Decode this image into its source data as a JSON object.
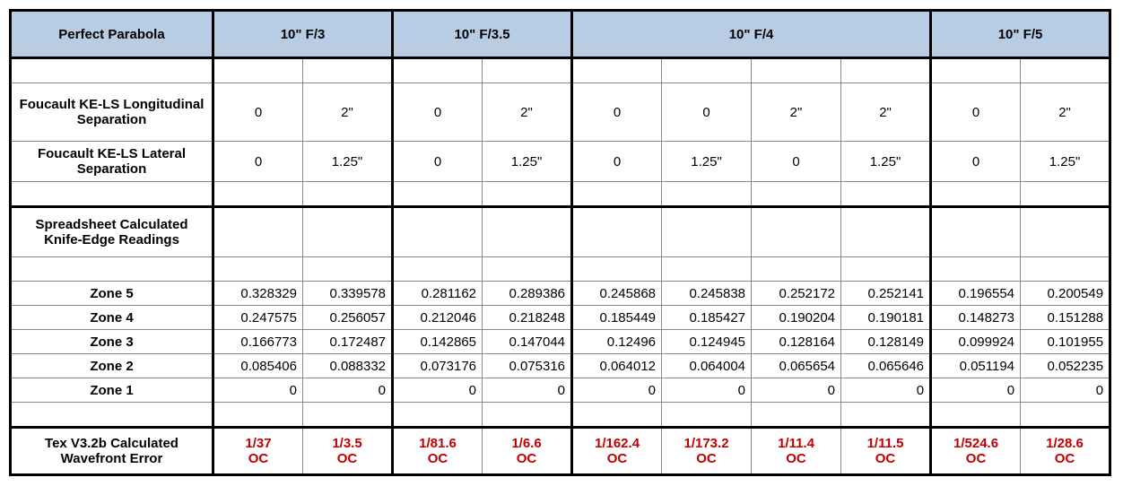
{
  "header": {
    "rowLabel": "Perfect Parabola",
    "groups": [
      "10\" F/3",
      "10\" F/3.5",
      "10\" F/4",
      "10\" F/5"
    ],
    "groupSpans": [
      2,
      2,
      4,
      2
    ],
    "bg": "#b8cce4"
  },
  "foucault": {
    "longitudinal": {
      "label": "Foucault KE-LS Longitudinal Separation",
      "values": [
        "0",
        "2\"",
        "0",
        "2\"",
        "0",
        "0",
        "2\"",
        "2\"",
        "0",
        "2\""
      ]
    },
    "lateral": {
      "label": "Foucault KE-LS Lateral Separation",
      "values": [
        "0",
        "1.25\"",
        "0",
        "1.25\"",
        "0",
        "1.25\"",
        "0",
        "1.25\"",
        "0",
        "1.25\""
      ]
    }
  },
  "readings": {
    "sectionLabel": "Spreadsheet Calculated Knife-Edge Readings",
    "zones": [
      {
        "label": "Zone 5",
        "values": [
          "0.328329",
          "0.339578",
          "0.281162",
          "0.289386",
          "0.245868",
          "0.245838",
          "0.252172",
          "0.252141",
          "0.196554",
          "0.200549"
        ]
      },
      {
        "label": "Zone 4",
        "values": [
          "0.247575",
          "0.256057",
          "0.212046",
          "0.218248",
          "0.185449",
          "0.185427",
          "0.190204",
          "0.190181",
          "0.148273",
          "0.151288"
        ]
      },
      {
        "label": "Zone 3",
        "values": [
          "0.166773",
          "0.172487",
          "0.142865",
          "0.147044",
          "0.12496",
          "0.124945",
          "0.128164",
          "0.128149",
          "0.099924",
          "0.101955"
        ]
      },
      {
        "label": "Zone 2",
        "values": [
          "0.085406",
          "0.088332",
          "0.073176",
          "0.075316",
          "0.064012",
          "0.064004",
          "0.065654",
          "0.065646",
          "0.051194",
          "0.052235"
        ]
      },
      {
        "label": "Zone 1",
        "values": [
          "0",
          "0",
          "0",
          "0",
          "0",
          "0",
          "0",
          "0",
          "0",
          "0"
        ]
      }
    ]
  },
  "wavefront": {
    "label": "Tex V3.2b Calculated Wavefront Error",
    "line1": [
      "1/37",
      "1/3.5",
      "1/81.6",
      "1/6.6",
      "1/162.4",
      "1/173.2",
      "1/11.4",
      "1/11.5",
      "1/524.6",
      "1/28.6"
    ],
    "line2": [
      "OC",
      "OC",
      "OC",
      "OC",
      "OC",
      "OC",
      "OC",
      "OC",
      "OC",
      "OC"
    ],
    "color": "#c00000"
  },
  "style": {
    "headerBg": "#b8cce4",
    "borderColor": "#888888",
    "thickBorderColor": "#000000",
    "redText": "#c00000",
    "fontFamily": "Arial",
    "fontSize": 15
  }
}
